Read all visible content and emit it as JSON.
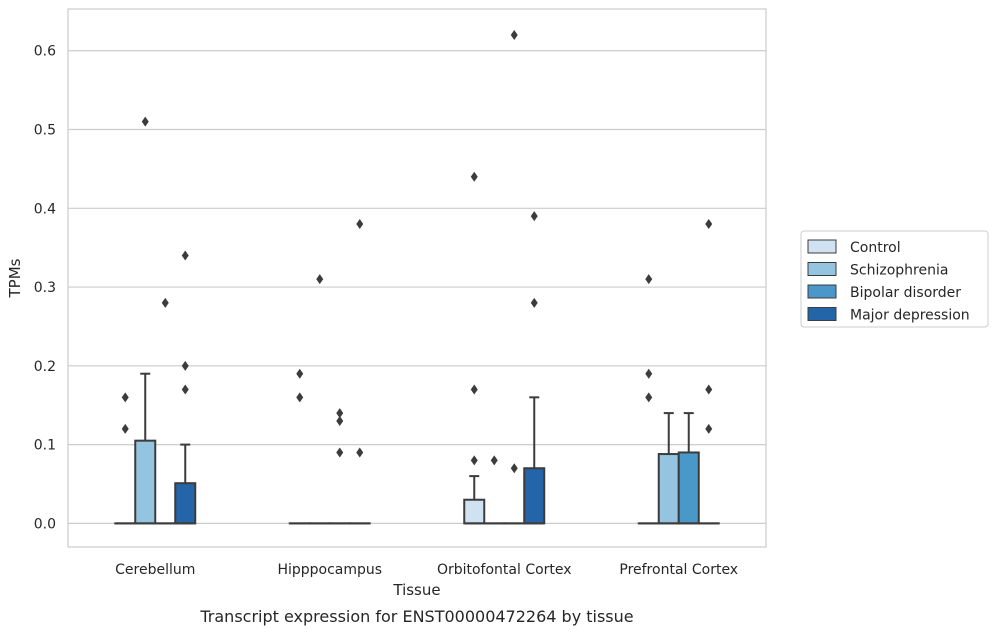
{
  "caption": "Transcript expression for ENST00000472264 by tissue",
  "chart_data": {
    "type": "box",
    "xlabel": "Tissue",
    "ylabel": "TPMs",
    "ylim": [
      -0.03,
      0.653
    ],
    "yticks": [
      0.0,
      0.1,
      0.2,
      0.3,
      0.4,
      0.5,
      0.6
    ],
    "ytick_labels": [
      "0.0",
      "0.1",
      "0.2",
      "0.3",
      "0.4",
      "0.5",
      "0.6"
    ],
    "categories": [
      "Cerebellum",
      "Hipppocampus",
      "Orbitofontal Cortex",
      "Prefrontal Cortex"
    ],
    "grid": "horizontal",
    "legend_position": "right-center",
    "series": [
      {
        "name": "Control",
        "color": "#d0e1f2",
        "boxes": [
          {
            "q1": 0,
            "median": 0,
            "q3": 0,
            "whisker_low": 0,
            "whisker_high": 0,
            "fliers": [
              0.12,
              0.16
            ]
          },
          {
            "q1": 0,
            "median": 0,
            "q3": 0,
            "whisker_low": 0,
            "whisker_high": 0,
            "fliers": [
              0.16,
              0.19
            ]
          },
          {
            "q1": 0,
            "median": 0,
            "q3": 0.03,
            "whisker_low": 0,
            "whisker_high": 0.06,
            "fliers": [
              0.08,
              0.17,
              0.44
            ]
          },
          {
            "q1": 0,
            "median": 0,
            "q3": 0,
            "whisker_low": 0,
            "whisker_high": 0,
            "fliers": [
              0.16,
              0.19,
              0.31
            ]
          }
        ]
      },
      {
        "name": "Schizophrenia",
        "color": "#94c4df",
        "boxes": [
          {
            "q1": 0,
            "median": 0,
            "q3": 0.105,
            "whisker_low": 0,
            "whisker_high": 0.19,
            "fliers": [
              0.51
            ]
          },
          {
            "q1": 0,
            "median": 0,
            "q3": 0,
            "whisker_low": 0,
            "whisker_high": 0,
            "fliers": [
              0.31
            ]
          },
          {
            "q1": 0,
            "median": 0,
            "q3": 0,
            "whisker_low": 0,
            "whisker_high": 0,
            "fliers": [
              0.08
            ]
          },
          {
            "q1": 0,
            "median": 0,
            "q3": 0.088,
            "whisker_low": 0,
            "whisker_high": 0.14,
            "fliers": []
          }
        ]
      },
      {
        "name": "Bipolar disorder",
        "color": "#4a98c9",
        "boxes": [
          {
            "q1": 0,
            "median": 0,
            "q3": 0,
            "whisker_low": 0,
            "whisker_high": 0,
            "fliers": [
              0.28
            ]
          },
          {
            "q1": 0,
            "median": 0,
            "q3": 0,
            "whisker_low": 0,
            "whisker_high": 0,
            "fliers": [
              0.09,
              0.13,
              0.14
            ]
          },
          {
            "q1": 0,
            "median": 0,
            "q3": 0,
            "whisker_low": 0,
            "whisker_high": 0,
            "fliers": [
              0.07,
              0.62
            ]
          },
          {
            "q1": 0,
            "median": 0,
            "q3": 0.09,
            "whisker_low": 0,
            "whisker_high": 0.14,
            "fliers": []
          }
        ]
      },
      {
        "name": "Major depression",
        "color": "#2464a8",
        "boxes": [
          {
            "q1": 0,
            "median": 0,
            "q3": 0.051,
            "whisker_low": 0,
            "whisker_high": 0.1,
            "fliers": [
              0.17,
              0.2,
              0.34
            ]
          },
          {
            "q1": 0,
            "median": 0,
            "q3": 0,
            "whisker_low": 0,
            "whisker_high": 0,
            "fliers": [
              0.09,
              0.38
            ]
          },
          {
            "q1": 0,
            "median": 0,
            "q3": 0.07,
            "whisker_low": 0,
            "whisker_high": 0.16,
            "fliers": [
              0.28,
              0.39
            ]
          },
          {
            "q1": 0,
            "median": 0,
            "q3": 0,
            "whisker_low": 0,
            "whisker_high": 0,
            "fliers": [
              0.12,
              0.17,
              0.38
            ]
          }
        ]
      }
    ]
  }
}
